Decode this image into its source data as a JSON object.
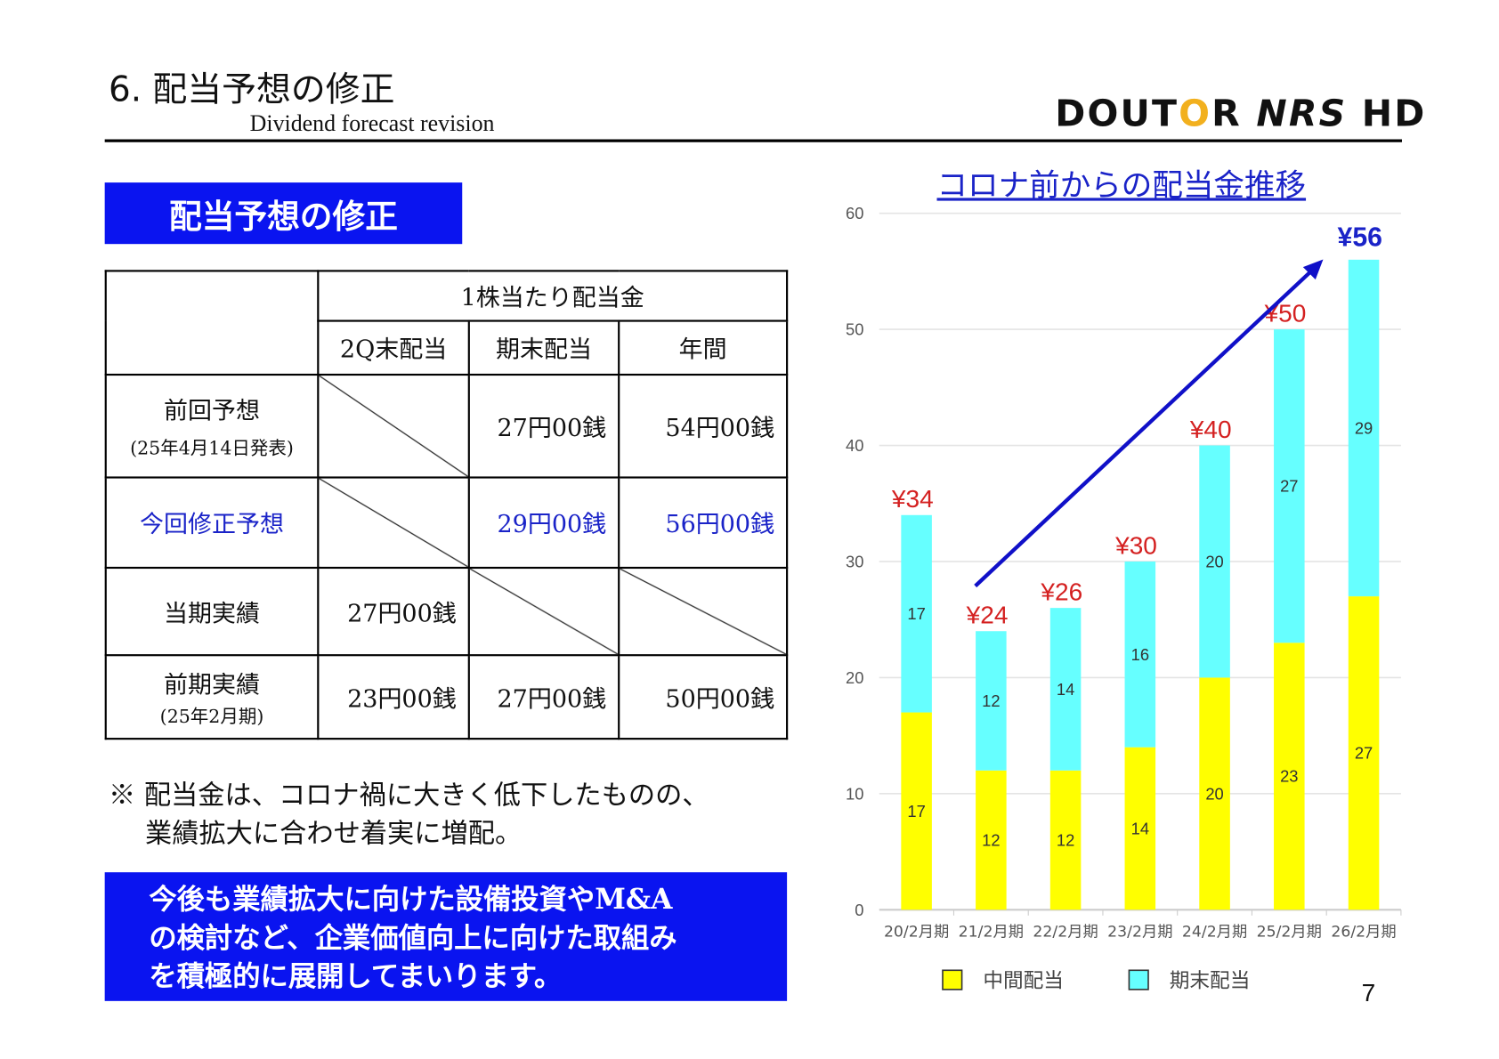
{
  "header": {
    "title": "6. 配当予想の修正",
    "subtitle": "Dividend forecast revision",
    "logo": "DOUTOR NRS HD"
  },
  "section_badge": "配当予想の修正",
  "table": {
    "group_header": "1株当たり配当金",
    "columns": [
      "2Q末配当",
      "期末配当",
      "年間"
    ],
    "rows": [
      {
        "label": "前回予想",
        "sub": "(25年4月14日発表)",
        "values": [
          "",
          "27円00銭",
          "54円00銭"
        ],
        "highlight": false
      },
      {
        "label": "今回修正予想",
        "sub": "",
        "values": [
          "",
          "29円00銭",
          "56円00銭"
        ],
        "highlight": true
      },
      {
        "label": "当期実績",
        "sub": "",
        "values": [
          "27円00銭",
          "",
          ""
        ],
        "highlight": false
      },
      {
        "label": "前期実績",
        "sub": "(25年2月期)",
        "values": [
          "23円00銭",
          "27円00銭",
          "50円00銭"
        ],
        "highlight": false
      }
    ]
  },
  "note": {
    "line1": "※ 配当金は、コロナ禍に大きく低下したものの、",
    "line2": "業績拡大に合わせ着実に増配。"
  },
  "callout": {
    "line1": "今後も業績拡大に向けた設備投資やM&A",
    "line2": "の検討など、企業価値向上に向けた取組み",
    "line3": "を積極的に展開してまいります。"
  },
  "colors": {
    "accent_blue": "#0a14f0",
    "interim": "#ffff00",
    "year_end": "#66ffff",
    "total_label": "#d42020",
    "highlight_label": "#1a23c8"
  },
  "chart_data": {
    "type": "bar",
    "stacked": true,
    "title": "コロナ前からの配当金推移",
    "categories": [
      "20/2月期",
      "21/2月期",
      "22/2月期",
      "23/2月期",
      "24/2月期",
      "25/2月期",
      "26/2月期"
    ],
    "series": [
      {
        "name": "中間配当",
        "values": [
          17,
          12,
          12,
          14,
          20,
          23,
          27
        ]
      },
      {
        "name": "期末配当",
        "values": [
          17,
          12,
          14,
          16,
          20,
          27,
          29
        ]
      }
    ],
    "totals": [
      "¥34",
      "¥24",
      "¥26",
      "¥30",
      "¥40",
      "¥50",
      "¥56"
    ],
    "ylim": [
      0,
      60
    ],
    "yticks": [
      0,
      10,
      20,
      30,
      40,
      50,
      60
    ],
    "grid": true,
    "legend": "bottom",
    "annotation": "upward trend arrow"
  },
  "page_number": "7"
}
